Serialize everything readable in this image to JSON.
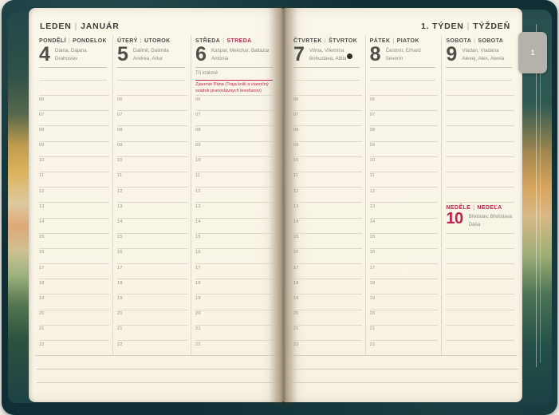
{
  "ui": {
    "sep": "|"
  },
  "left_page": {
    "title": {
      "czech": "LEDEN",
      "slovak": "JANUÁR"
    },
    "days": [
      {
        "name_cz": "PONDĚLÍ",
        "name_sk": "PONDELOK",
        "num": "4",
        "names_line1": "Diana, Dajana",
        "names_line2": "Drahoslav"
      },
      {
        "name_cz": "ÚTERÝ",
        "name_sk": "UTOROK",
        "num": "5",
        "names_line1": "Dalimil, Dalimila",
        "names_line2": "Andrea, Artur"
      },
      {
        "name_cz": "STŘEDA",
        "name_sk": "STREDA",
        "num": "6",
        "names_line1": "Kašpar, Melichar, Baltazar",
        "names_line2": "Antónia",
        "holiday_cz": "Tři králové",
        "holiday_sk": "Zjavenie Pána (Traja králi a vianočný sviatok pravoslávnych kresťanov)"
      }
    ]
  },
  "right_page": {
    "title": {
      "czech": "1. TÝDEN",
      "slovak": "TÝŽDEŇ"
    },
    "days": [
      {
        "name_cz": "ČTVRTEK",
        "name_sk": "ŠTVRTOK",
        "num": "7",
        "names_line1": "Vilma, Vilemína",
        "names_line2": "Bohuslava, Attila",
        "moon_phase": "new-moon"
      },
      {
        "name_cz": "PÁTEK",
        "name_sk": "PIATOK",
        "num": "8",
        "names_line1": "Čestmír, Erhard",
        "names_line2": "Severín"
      },
      {
        "name_cz": "SOBOTA",
        "name_sk": "SOBOTA",
        "num": "9",
        "names_line1": "Vladan, Vladana",
        "names_line2": "Alexej, Alex, Alexia"
      }
    ],
    "sunday": {
      "name_cz": "NEDĚLE",
      "name_sk": "NEDEĽA",
      "num": "10",
      "names_line1": "Břetislav, Břetislava",
      "names_line2": "Dáša"
    }
  },
  "hours": [
    "06",
    "07",
    "08",
    "09",
    "10",
    "11",
    "12",
    "13",
    "14",
    "15",
    "16",
    "17",
    "18",
    "19",
    "20",
    "21",
    "22"
  ],
  "week_tab": "1",
  "colors": {
    "accent_red": "#c22050",
    "page_cream": "#f8f4e7",
    "cover_teal": "#102f35",
    "tab_gray": "#b5b2ab"
  }
}
